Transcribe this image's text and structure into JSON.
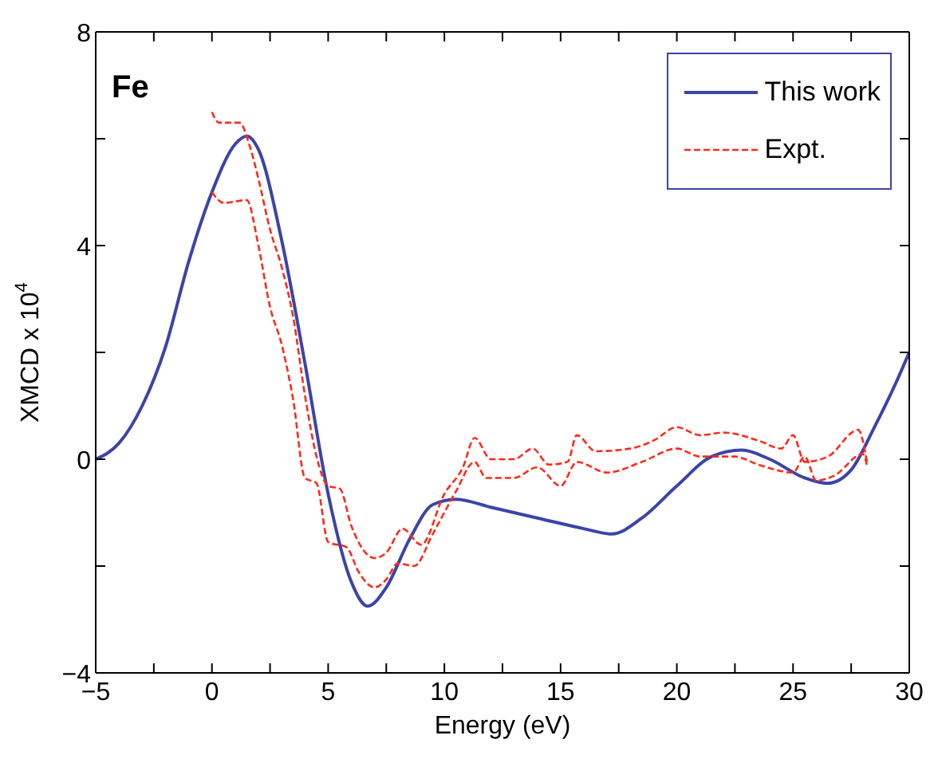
{
  "chart_data": {
    "type": "line",
    "xlabel": "Energy (eV)",
    "ylabel": "XMCD x 10$^{4}$",
    "annotations": [
      "Fe"
    ],
    "xlim": [
      -5,
      30
    ],
    "xticks": [
      -5,
      {
        "value": -2.5,
        "label": null
      },
      0,
      {
        "value": 2.5,
        "label": null
      },
      5,
      {
        "value": 7.5,
        "label": null
      },
      10,
      {
        "value": 12.5,
        "label": null
      },
      15,
      {
        "value": 17.5,
        "label": null
      },
      20,
      {
        "value": 22.5,
        "label": null
      },
      25,
      {
        "value": 27.5,
        "label": null
      },
      30
    ],
    "ylim": [
      -4,
      8
    ],
    "yticks": [
      -4,
      {
        "value": -2,
        "label": null
      },
      0,
      {
        "value": 2,
        "label": null
      },
      4,
      {
        "value": 6,
        "label": null
      },
      8
    ],
    "legend": "top right",
    "series": [
      {
        "name": "This work",
        "color": "#3b44a8",
        "line_style": "solid",
        "x": [
          -5,
          -4,
          -3,
          -2,
          -1,
          0,
          1,
          1.5,
          2,
          3,
          4,
          5,
          6,
          6.7,
          7.5,
          8.5,
          9.5,
          10.5,
          12,
          14,
          16,
          17.2,
          18.5,
          20,
          21.5,
          22.8,
          24,
          25.5,
          26.5,
          27.5,
          28.5,
          29.5,
          30
        ],
        "values": [
          0,
          0.3,
          1.0,
          2.1,
          3.7,
          5.0,
          5.9,
          6.05,
          5.8,
          4.1,
          1.8,
          -0.65,
          -2.3,
          -2.75,
          -2.4,
          -1.5,
          -0.85,
          -0.75,
          -0.9,
          -1.1,
          -1.3,
          -1.4,
          -1.1,
          -0.5,
          0.05,
          0.17,
          0.0,
          -0.35,
          -0.45,
          -0.2,
          0.6,
          1.5,
          2.0
        ]
      },
      {
        "name": "Expt.",
        "color": "#ff2a1a",
        "line_style": "dashed",
        "x": [
          0,
          0.3,
          1.2,
          1.6,
          2,
          2.5,
          3,
          3.5,
          4,
          4.5,
          5,
          5.5,
          6,
          7,
          7.5,
          8.2,
          9,
          10,
          10.8,
          11.3,
          12,
          13,
          13.8,
          14.5,
          15.3,
          15.7,
          16.5,
          18,
          19,
          20,
          21,
          22,
          23.5,
          24.5,
          25,
          25.5,
          26.5,
          27.8,
          28.2
        ],
        "values": [
          6.5,
          6.3,
          6.3,
          5.9,
          5.25,
          4.3,
          3.6,
          2.65,
          1.2,
          0.05,
          -0.5,
          -0.55,
          -1.25,
          -1.85,
          -1.75,
          -1.3,
          -1.6,
          -0.65,
          -0.15,
          0.4,
          0.0,
          0.0,
          0.2,
          -0.1,
          -0.05,
          0.45,
          0.15,
          0.2,
          0.35,
          0.6,
          0.45,
          0.5,
          0.35,
          0.2,
          0.45,
          -0.05,
          0.05,
          0.55,
          -0.1
        ]
      },
      {
        "color": "#ff2a1a",
        "line_style": "dashed",
        "x": [
          0,
          0.5,
          1.5,
          2,
          2.5,
          3,
          3.5,
          4,
          4.5,
          5,
          5.8,
          6.3,
          7,
          7.5,
          8,
          8.7,
          9.5,
          10.5,
          11.3,
          11.8,
          13,
          14,
          15,
          15.7,
          17,
          18.5,
          20,
          21,
          22.5,
          23.5,
          25,
          25.5,
          26,
          26.8,
          28,
          28.2
        ],
        "values": [
          5.0,
          4.8,
          4.85,
          4.0,
          2.85,
          2.15,
          1.1,
          -0.35,
          -0.45,
          -1.55,
          -1.65,
          -2.1,
          -2.4,
          -2.25,
          -1.95,
          -2.0,
          -1.4,
          -0.6,
          -0.05,
          -0.35,
          -0.35,
          -0.15,
          -0.5,
          -0.05,
          -0.25,
          -0.05,
          0.2,
          0.05,
          0.05,
          -0.1,
          -0.25,
          0.05,
          -0.4,
          -0.3,
          0.1,
          -0.15
        ]
      }
    ]
  }
}
